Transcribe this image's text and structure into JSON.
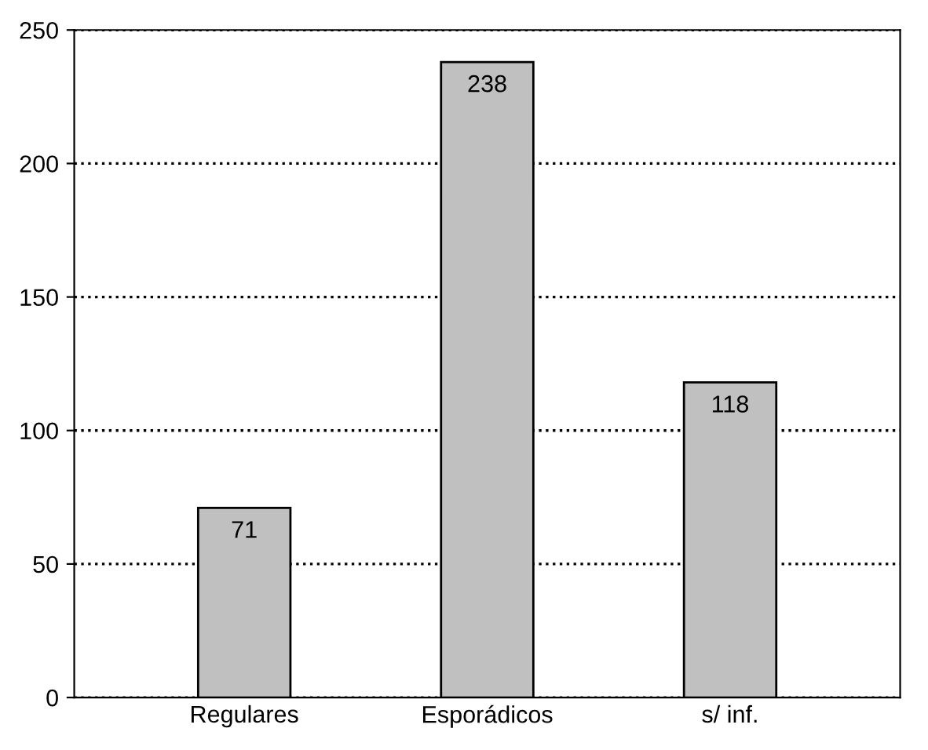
{
  "chart_data": {
    "type": "bar",
    "categories": [
      "Regulares",
      "Esporádicos",
      "s/ inf."
    ],
    "values": [
      71,
      238,
      118
    ],
    "color": "#c0c0c0",
    "data_labels": true,
    "ylim": [
      0,
      250
    ],
    "yticks": [
      0,
      50,
      100,
      150,
      200,
      250
    ],
    "grid": "y",
    "line_style": "dotted"
  }
}
